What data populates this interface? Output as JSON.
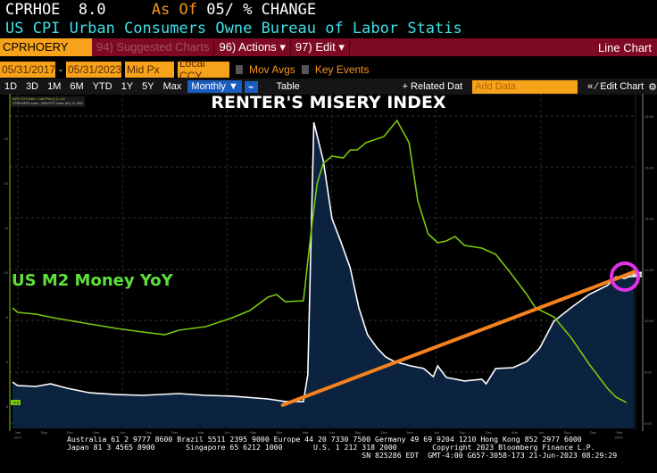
{
  "header": {
    "ticker": "CPRHOE",
    "value": "8.0",
    "as_of": "As Of",
    "as_of_rest": "05/ % CHANGE",
    "description": "US CPI Urban Consumers Owne Bureau of Labor Statis"
  },
  "toolbar": {
    "security": "CPRHOERY Index",
    "suggested": "94) Suggested Charts",
    "actions": "96) Actions ▾",
    "edit": "97) Edit ▾",
    "chart_type": "Line Chart"
  },
  "controls": {
    "start_date": "05/31/2017",
    "end_date": "05/31/2023",
    "dash": "-",
    "price": "Mid Px",
    "currency": "Local CCY",
    "mov_avgs": "Mov Avgs",
    "key_events": "Key Events"
  },
  "periods": [
    "1D",
    "3D",
    "1M",
    "6M",
    "YTD",
    "1Y",
    "5Y",
    "Max"
  ],
  "frequency": "Monthly ▼",
  "table": "Table",
  "related": "+ Related Dat",
  "add_data_placeholder": "Add Data",
  "edit_chart": "« ∕ Edit Chart",
  "gear": "⚙",
  "colors": {
    "m2": "#7ac70c",
    "cpi": "#ffffff",
    "fill": "#0c2340",
    "trend": "#f5821f",
    "circle": "#e032e8"
  },
  "chart_data": {
    "type": "line",
    "title": "RENTER'S MISERY INDEX",
    "annotation": "US M2 Money YoY",
    "legend": [
      "M2% YOY Index - Last Price (L1)  -4.6",
      "CPRHOERY Index - BOLRTST Index (R1)  11.7992"
    ],
    "x_unit": "months since Jun 2017",
    "x_ticks": [
      "Jun",
      "Sep",
      "Dec",
      "Mar",
      "Jun",
      "Sep",
      "Dec",
      "Mar",
      "Jun",
      "Sep",
      "Dec",
      "Mar",
      "Jun",
      "Sep",
      "Dec",
      "Mar",
      "Jun",
      "Sep",
      "Dec",
      "Mar",
      "Jun",
      "Sep",
      "Dec",
      "Mar"
    ],
    "x_years": {
      "first": "2017",
      "last": "2023"
    },
    "left_axis": {
      "range": [
        -8,
        28
      ],
      "ticks": [
        "25",
        "20",
        "15",
        "10",
        "5",
        "0",
        "-5"
      ],
      "last": "-4.6"
    },
    "right_axis": {
      "range": [
        5.6,
        19
      ],
      "ticks": [
        "18.00",
        "16.00",
        "14.00",
        "12.00",
        "10.00",
        "8.00",
        "6.00"
      ],
      "last": "11.7992"
    },
    "series": [
      {
        "name": "M2% YOY Index",
        "axis": "left",
        "points": [
          [
            0,
            6.0
          ],
          [
            0.6,
            5.5
          ],
          [
            2.7,
            5.3
          ],
          [
            4.7,
            4.9
          ],
          [
            8.9,
            4.2
          ],
          [
            12,
            3.7
          ],
          [
            15,
            3.3
          ],
          [
            17.6,
            3.0
          ],
          [
            19.2,
            3.5
          ],
          [
            22.3,
            3.9
          ],
          [
            25.4,
            4.9
          ],
          [
            27.4,
            5.7
          ],
          [
            29.5,
            7.2
          ],
          [
            30.5,
            7.5
          ],
          [
            31.5,
            6.7
          ],
          [
            33.6,
            6.8
          ],
          [
            34.6,
            15.5
          ],
          [
            35.2,
            20
          ],
          [
            35.9,
            22.2
          ],
          [
            36.9,
            23
          ],
          [
            38.2,
            22.8
          ],
          [
            39,
            23.7
          ],
          [
            39.8,
            23.7
          ],
          [
            40.8,
            24.5
          ],
          [
            42.9,
            25.2
          ],
          [
            44.4,
            27
          ],
          [
            45.8,
            24.5
          ],
          [
            46.8,
            18
          ],
          [
            48,
            14.3
          ],
          [
            49.1,
            13.3
          ],
          [
            50.1,
            13.5
          ],
          [
            51.1,
            14
          ],
          [
            52.2,
            13
          ],
          [
            54.2,
            12.7
          ],
          [
            55.8,
            12
          ],
          [
            57.3,
            10.2
          ],
          [
            59.4,
            7.5
          ],
          [
            60.4,
            6
          ],
          [
            62.5,
            5
          ],
          [
            64.5,
            2.7
          ],
          [
            66.6,
            -0.3
          ],
          [
            68.7,
            -3
          ],
          [
            69.7,
            -4
          ],
          [
            70.9,
            -4.6
          ]
        ]
      },
      {
        "name": "CPRHOERY Index",
        "axis": "right",
        "points": [
          [
            0,
            7.6
          ],
          [
            0.6,
            7.46
          ],
          [
            2.7,
            7.43
          ],
          [
            4.4,
            7.53
          ],
          [
            6.3,
            7.36
          ],
          [
            8.9,
            7.18
          ],
          [
            12,
            7.11
          ],
          [
            15,
            7.08
          ],
          [
            19.2,
            7.15
          ],
          [
            22.3,
            7.08
          ],
          [
            25.4,
            7.05
          ],
          [
            29.5,
            6.94
          ],
          [
            31.5,
            6.84
          ],
          [
            33.6,
            6.84
          ],
          [
            34.1,
            7.88
          ],
          [
            34.8,
            17.74
          ],
          [
            35.9,
            16.24
          ],
          [
            36.9,
            13.98
          ],
          [
            37.9,
            13.1
          ],
          [
            39,
            12.06
          ],
          [
            40,
            10.5
          ],
          [
            41,
            9.45
          ],
          [
            42.1,
            8.93
          ],
          [
            43.1,
            8.58
          ],
          [
            44.1,
            8.4
          ],
          [
            46,
            8.23
          ],
          [
            47.5,
            8.13
          ],
          [
            48.6,
            7.81
          ],
          [
            49.1,
            8.23
          ],
          [
            50.1,
            7.78
          ],
          [
            52.2,
            7.64
          ],
          [
            54.2,
            7.71
          ],
          [
            54.7,
            7.53
          ],
          [
            55.8,
            8.13
          ],
          [
            57.8,
            8.16
          ],
          [
            59.4,
            8.4
          ],
          [
            60.9,
            8.93
          ],
          [
            62.5,
            9.97
          ],
          [
            64.5,
            10.5
          ],
          [
            66.6,
            11.02
          ],
          [
            68.7,
            11.37
          ],
          [
            69.7,
            11.71
          ],
          [
            70.7,
            11.64
          ],
          [
            71.8,
            11.8
          ]
        ]
      }
    ],
    "trendline": {
      "from": [
        31.2,
        6.7
      ],
      "to": [
        71.8,
        11.9
      ]
    }
  },
  "footer": {
    "line1": "Australia 61 2 9777 8600 Brazil 5511 2395 9000 Europe 44 20 7330 7500 Germany 49 69 9204 1210 Hong Kong 852 2977 6000",
    "line2": "Japan 81 3 4565 8900       Singapore 65 6212 1000       U.S. 1 212 318 2000        Copyright 2023 Bloomberg Finance L.P.",
    "line3": "                                                                   SN 825286 EDT  GMT-4:00 G657-3058-173 21-Jun-2023 08:29:29"
  }
}
